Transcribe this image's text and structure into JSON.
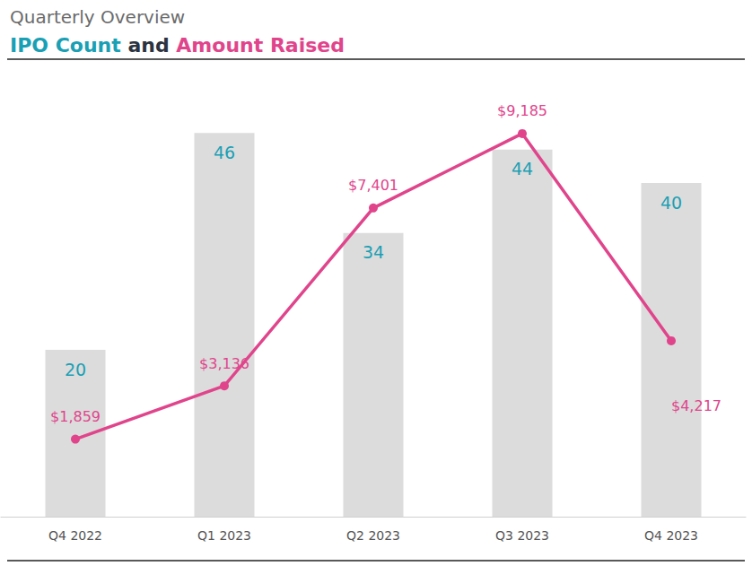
{
  "chart_data": {
    "type": "bar",
    "title": "Quarterly Overview",
    "subtitle": "IPO Count and Amount Raised",
    "categories": [
      "Q4 2022",
      "Q1 2023",
      "Q2 2023",
      "Q3 2023",
      "Q4 2023"
    ],
    "series": [
      {
        "name": "IPO Count",
        "type": "bar",
        "color": "#dcdcdc",
        "values": [
          20,
          46,
          34,
          44,
          40
        ]
      },
      {
        "name": "Amount Raised",
        "type": "line",
        "axis": "y2",
        "color": "#e0458c",
        "marker": "circle",
        "values": [
          1859,
          3136,
          7401,
          9185,
          4217
        ],
        "value_labels": [
          "$1,859",
          "$3,136",
          "$7,401",
          "$9,185",
          "$4,217"
        ]
      }
    ],
    "ylim": [
      0,
      50
    ],
    "yticks": [
      0,
      50
    ],
    "y2lim": [
      0,
      10000
    ],
    "y2ticks": [
      0,
      10000
    ],
    "data_labels": true,
    "tick_labels": "x",
    "grid": false
  }
}
